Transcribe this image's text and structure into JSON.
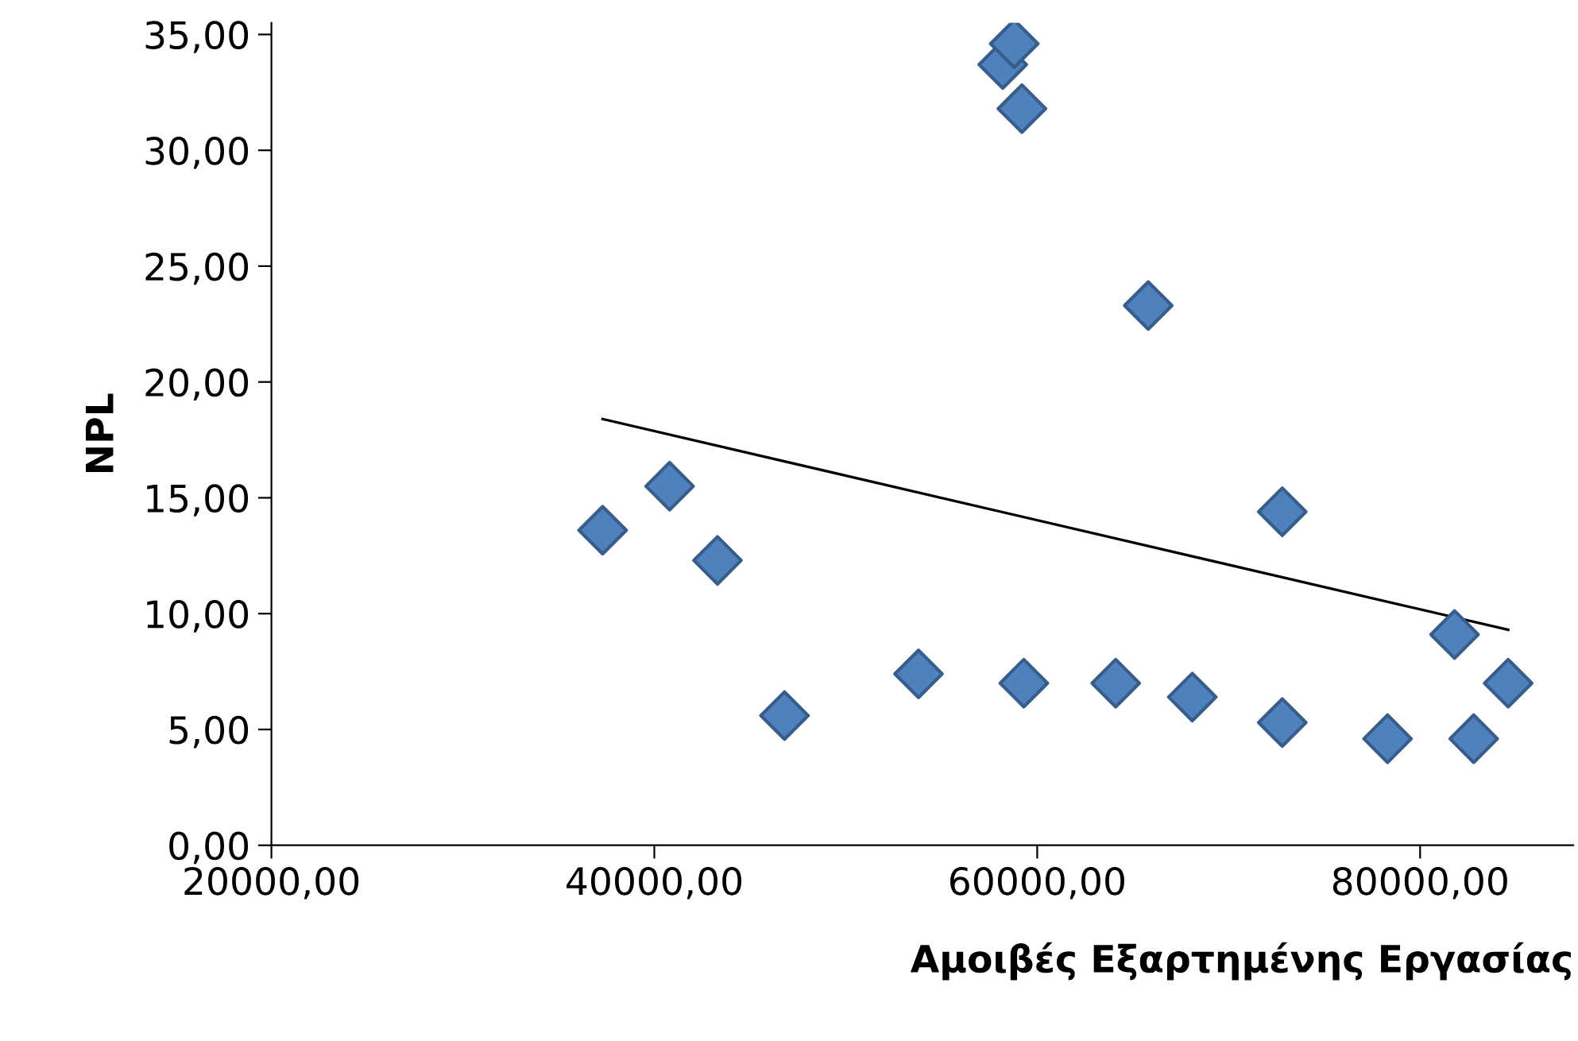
{
  "chart_data": {
    "type": "scatter",
    "xlabel": "Αμοιβές Εξαρτημένης Εργασίας",
    "ylabel": "NPL",
    "grid": false,
    "legend": false,
    "series": [
      {
        "marker": "diamond",
        "color": "#4f81bd",
        "x": [
          37300,
          40800,
          43300,
          46800,
          53800,
          58200,
          58800,
          59200,
          59300,
          64100,
          65800,
          68100,
          72800,
          72800,
          78300,
          81800,
          82800,
          84600
        ],
        "values": [
          13.6,
          15.5,
          12.3,
          5.6,
          7.4,
          33.7,
          34.6,
          31.8,
          7.0,
          7.0,
          23.3,
          6.4,
          14.4,
          5.3,
          4.6,
          9.1,
          4.6,
          7.0
        ]
      },
      {
        "type": "line",
        "marker": "none",
        "color": "#000000",
        "x": [
          37300,
          84600
        ],
        "values": [
          18.4,
          9.3
        ]
      }
    ],
    "xlim": [
      20000,
      88000
    ],
    "ylim": [
      0,
      35.5
    ],
    "xticks": [
      {
        "value": 20000,
        "label": "20000,00"
      },
      {
        "value": 40000,
        "label": "40000,00"
      },
      {
        "value": 60000,
        "label": "60000,00"
      },
      {
        "value": 80000,
        "label": "80000,00"
      }
    ],
    "yticks": [
      {
        "value": 0,
        "label": "0,00"
      },
      {
        "value": 5,
        "label": "5,00"
      },
      {
        "value": 10,
        "label": "10,00"
      },
      {
        "value": 15,
        "label": "15,00"
      },
      {
        "value": 20,
        "label": "20,00"
      },
      {
        "value": 25,
        "label": "25,00"
      },
      {
        "value": 30,
        "label": "30,00"
      },
      {
        "value": 35,
        "label": "35,00"
      }
    ]
  }
}
